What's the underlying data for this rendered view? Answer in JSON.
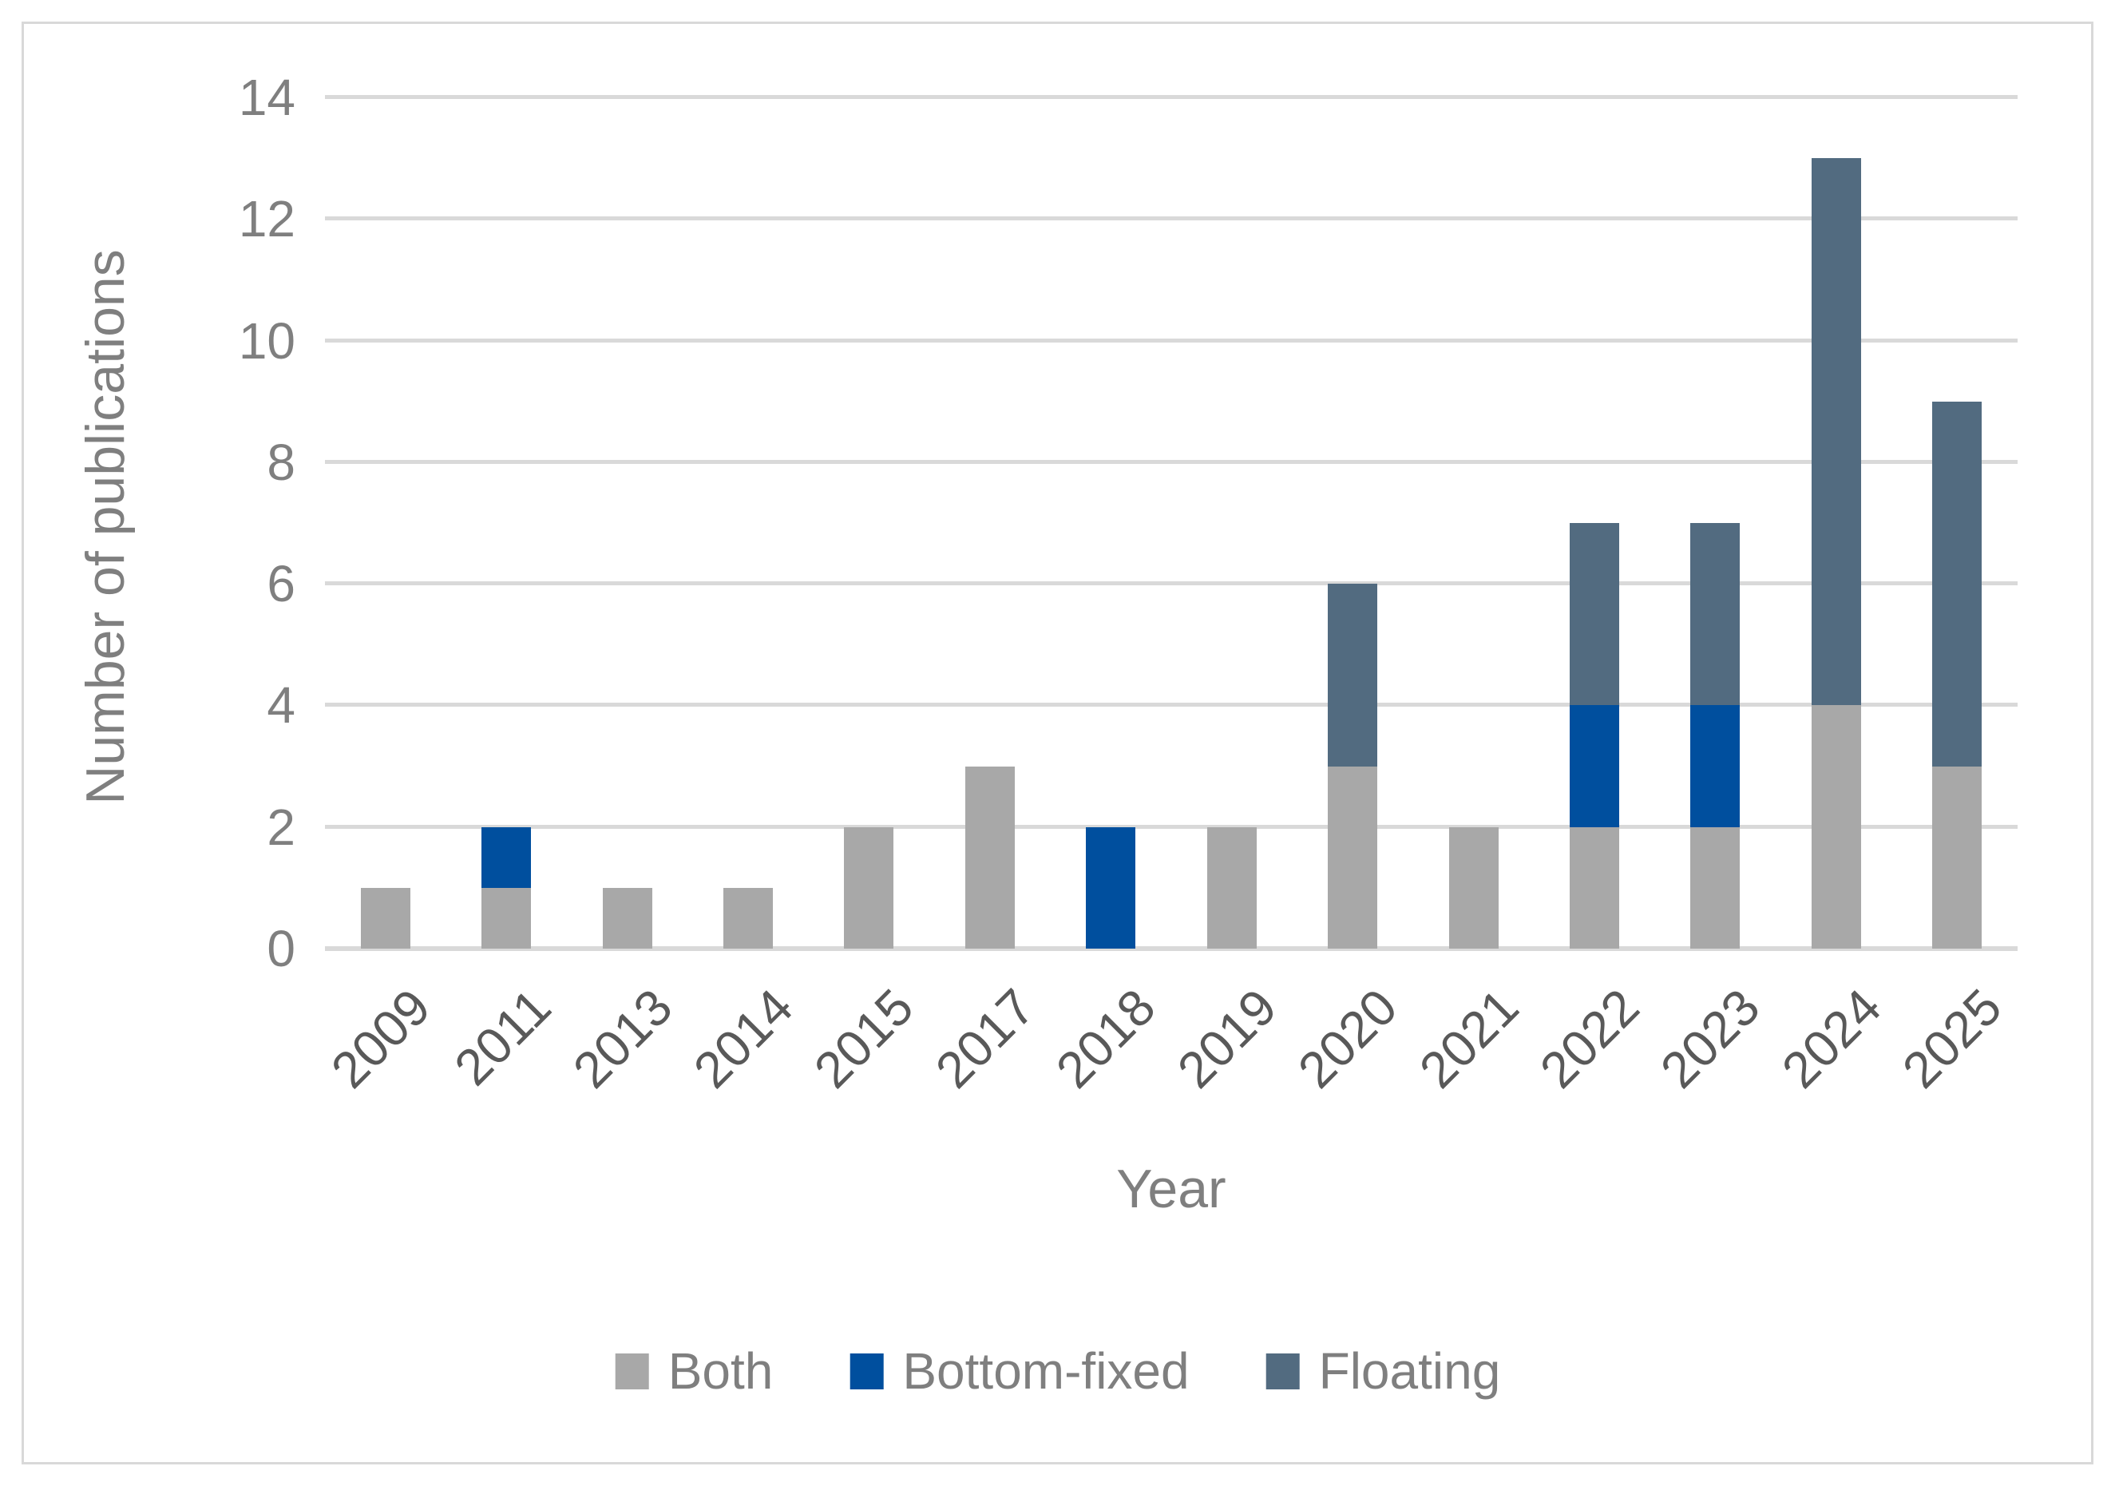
{
  "chart_data": {
    "type": "bar",
    "stacked": true,
    "title": "",
    "xlabel": "Year",
    "ylabel": "Number of publications",
    "categories": [
      "2009",
      "2011",
      "2013",
      "2014",
      "2015",
      "2017",
      "2018",
      "2019",
      "2020",
      "2021",
      "2022",
      "2023",
      "2024",
      "2025"
    ],
    "series": [
      {
        "name": "Both",
        "color": "#a8a8a8",
        "values": [
          1,
          1,
          1,
          1,
          2,
          3,
          0,
          2,
          3,
          2,
          2,
          2,
          4,
          3
        ]
      },
      {
        "name": "Bottom-fixed",
        "color": "#004f9e",
        "values": [
          0,
          1,
          0,
          0,
          0,
          0,
          2,
          0,
          0,
          0,
          2,
          2,
          0,
          0
        ]
      },
      {
        "name": "Floating",
        "color": "#526b80",
        "values": [
          0,
          0,
          0,
          0,
          0,
          0,
          0,
          0,
          3,
          0,
          3,
          3,
          9,
          6
        ]
      }
    ],
    "totals": [
      1,
      2,
      1,
      1,
      2,
      3,
      2,
      2,
      6,
      2,
      7,
      7,
      13,
      9
    ],
    "ylim": [
      0,
      14
    ],
    "ytick_step": 2,
    "grid": "horizontal",
    "legend_position": "bottom"
  },
  "styles": {
    "grid_color": "#d9d9d9",
    "frame_border_color": "#d9d9d9",
    "axis_text_color": "#7f7f7f",
    "category_text_color": "#595959"
  }
}
